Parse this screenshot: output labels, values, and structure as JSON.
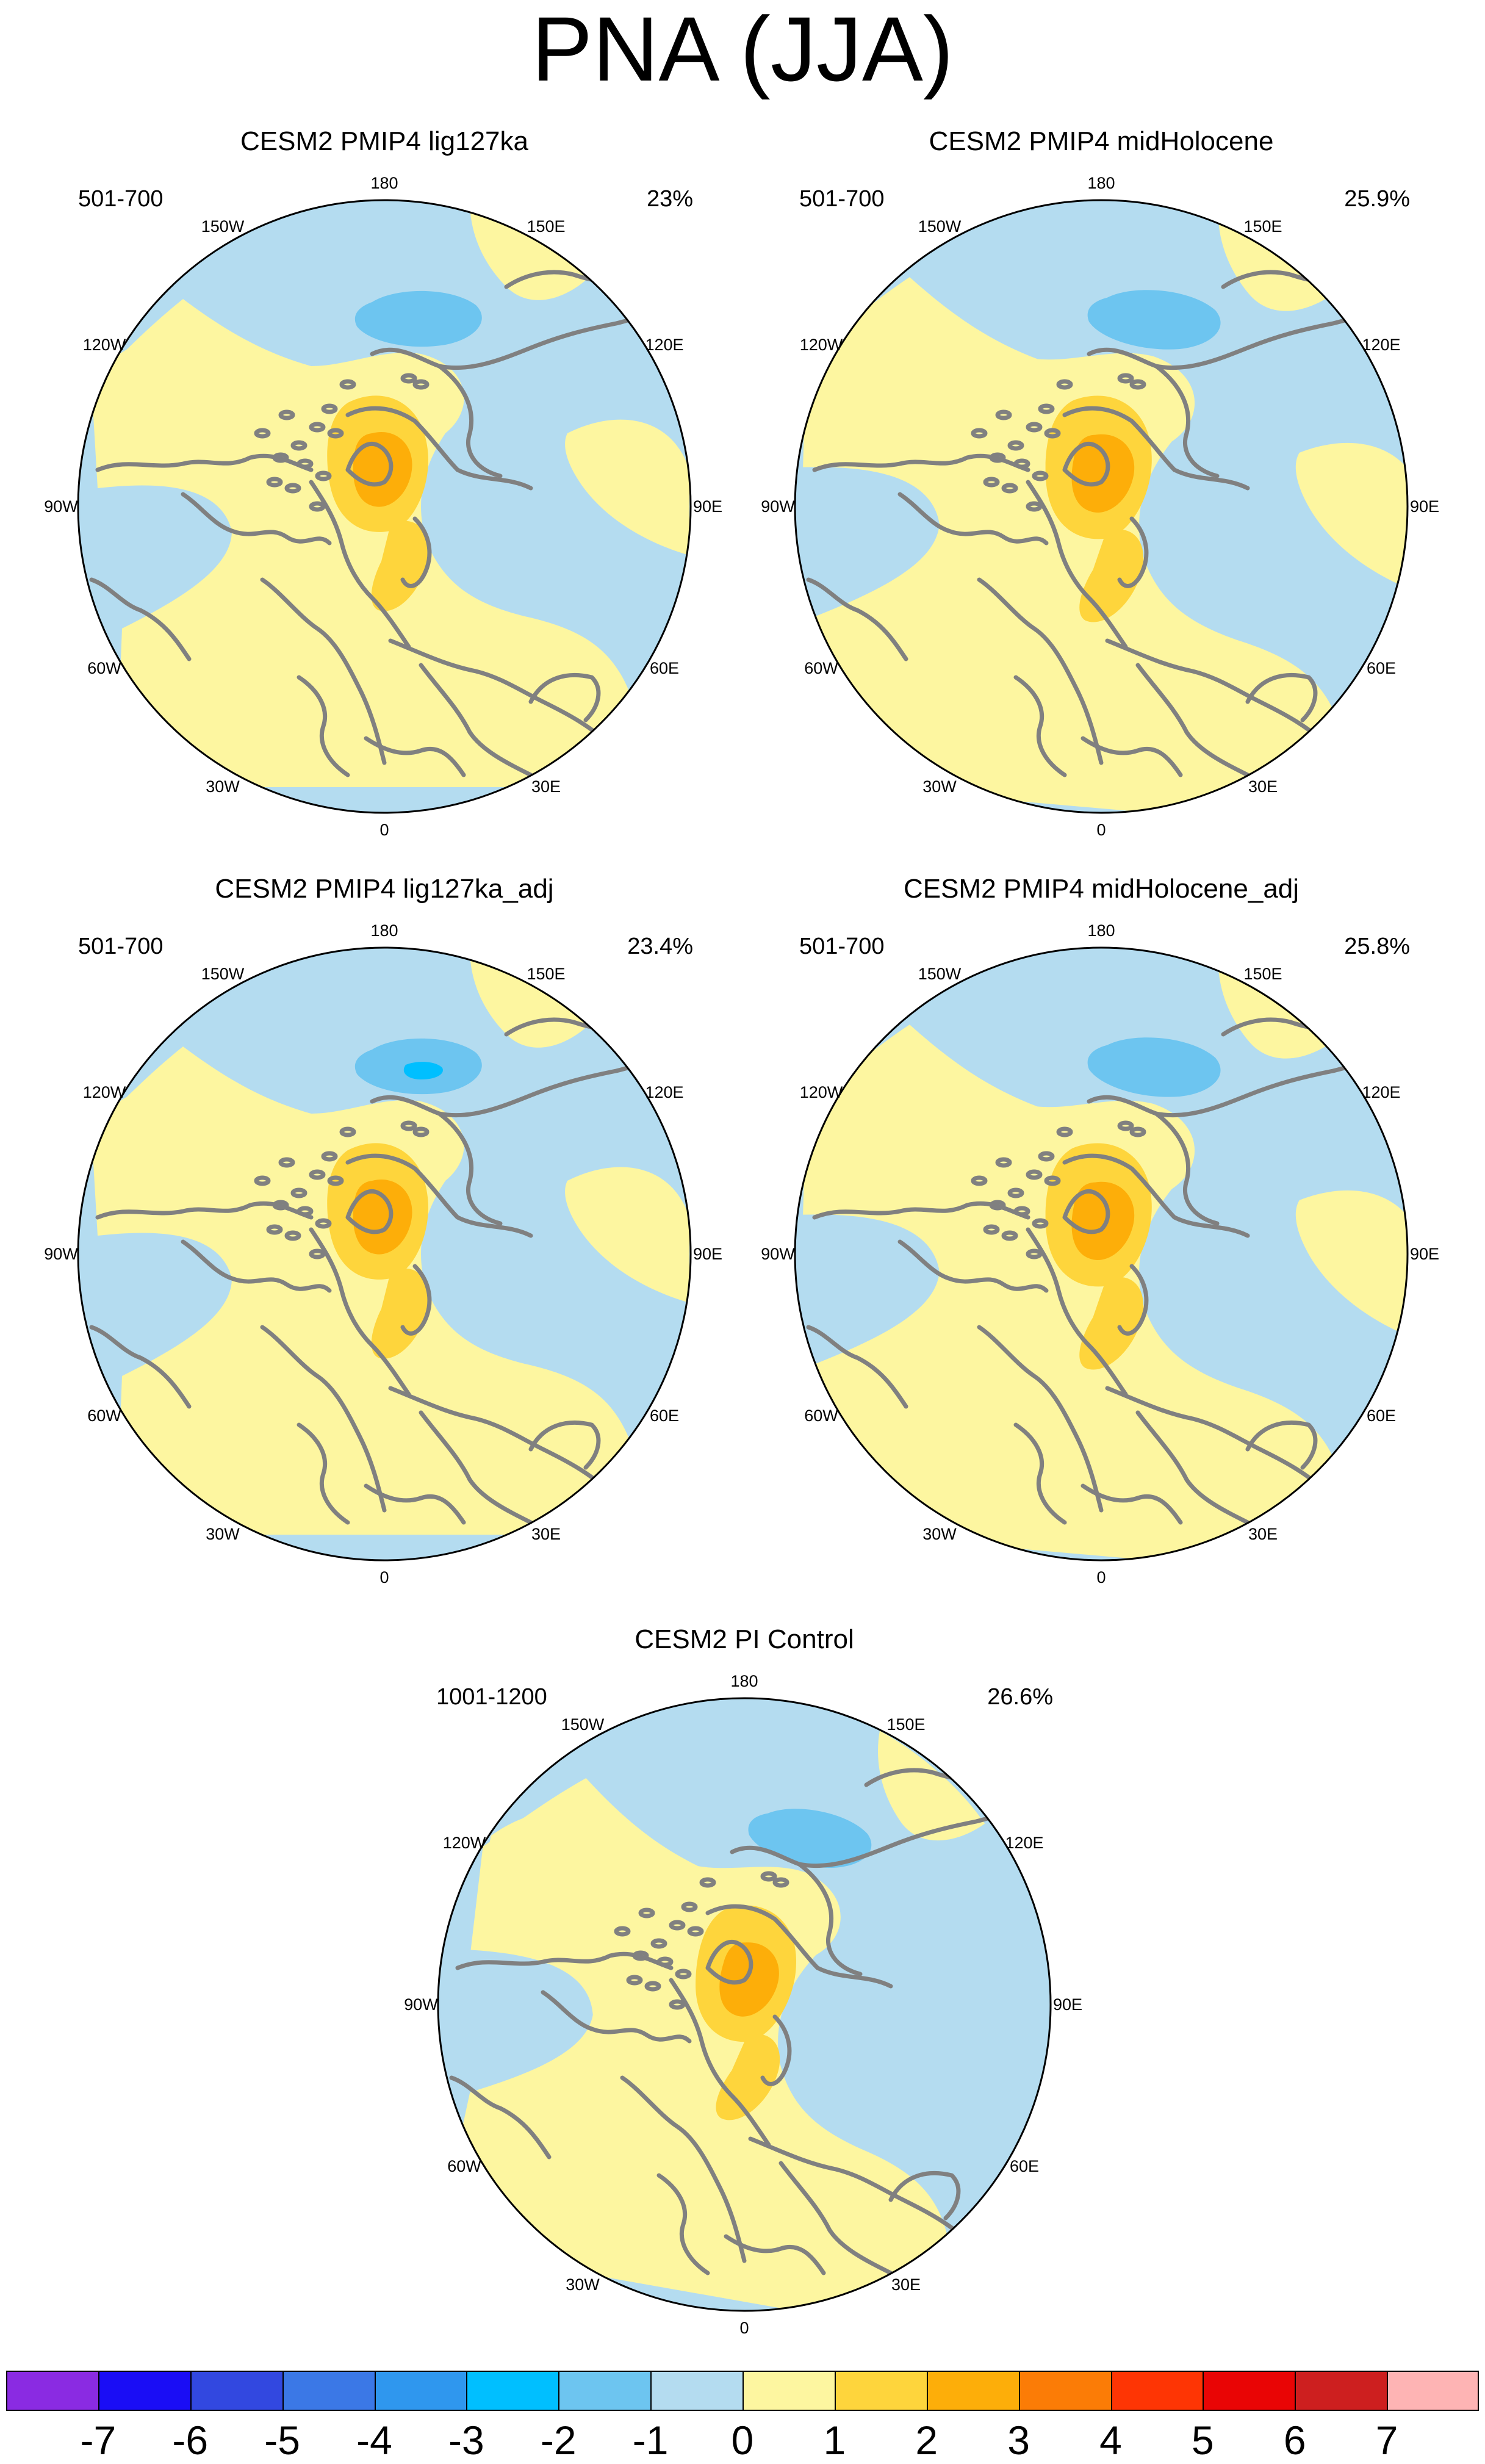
{
  "title": "PNA (JJA)",
  "lon_labels": [
    "180",
    "150E",
    "120E",
    "90E",
    "60E",
    "30E",
    "0",
    "30W",
    "60W",
    "90W",
    "120W",
    "150W"
  ],
  "panels": [
    {
      "title": "CESM2 PMIP4 lig127ka",
      "years": "501-700",
      "percent": "23%"
    },
    {
      "title": "CESM2 PMIP4 midHolocene",
      "years": "501-700",
      "percent": "25.9%"
    },
    {
      "title": "CESM2 PMIP4 lig127ka_adj",
      "years": "501-700",
      "percent": "23.4%"
    },
    {
      "title": "CESM2 PMIP4 midHolocene_adj",
      "years": "501-700",
      "percent": "25.8%"
    },
    {
      "title": "CESM2 PI Control",
      "years": "1001-1200",
      "percent": "26.6%"
    }
  ],
  "colorbar": {
    "labels": [
      "-7",
      "-6",
      "-5",
      "-4",
      "-3",
      "-2",
      "-1",
      "0",
      "1",
      "2",
      "3",
      "4",
      "5",
      "6",
      "7"
    ],
    "colors": [
      "#8a2be2",
      "#1a0df5",
      "#3248e0",
      "#3b78e6",
      "#2f97ee",
      "#00bfff",
      "#6dc5f0",
      "#b4dcf0",
      "#fdf6a0",
      "#fed53c",
      "#fdae09",
      "#fb7c06",
      "#fe3504",
      "#e90505",
      "#cd1f1f",
      "#feb4b4"
    ]
  },
  "map_colors": {
    "neg1": "#b4dcf0",
    "neg2": "#6dc5f0",
    "neg3": "#00bfff",
    "pos1": "#fdf6a0",
    "pos2": "#fed53c",
    "pos3": "#fdae09",
    "pos4": "#fb7c06",
    "coast": "#808080"
  }
}
